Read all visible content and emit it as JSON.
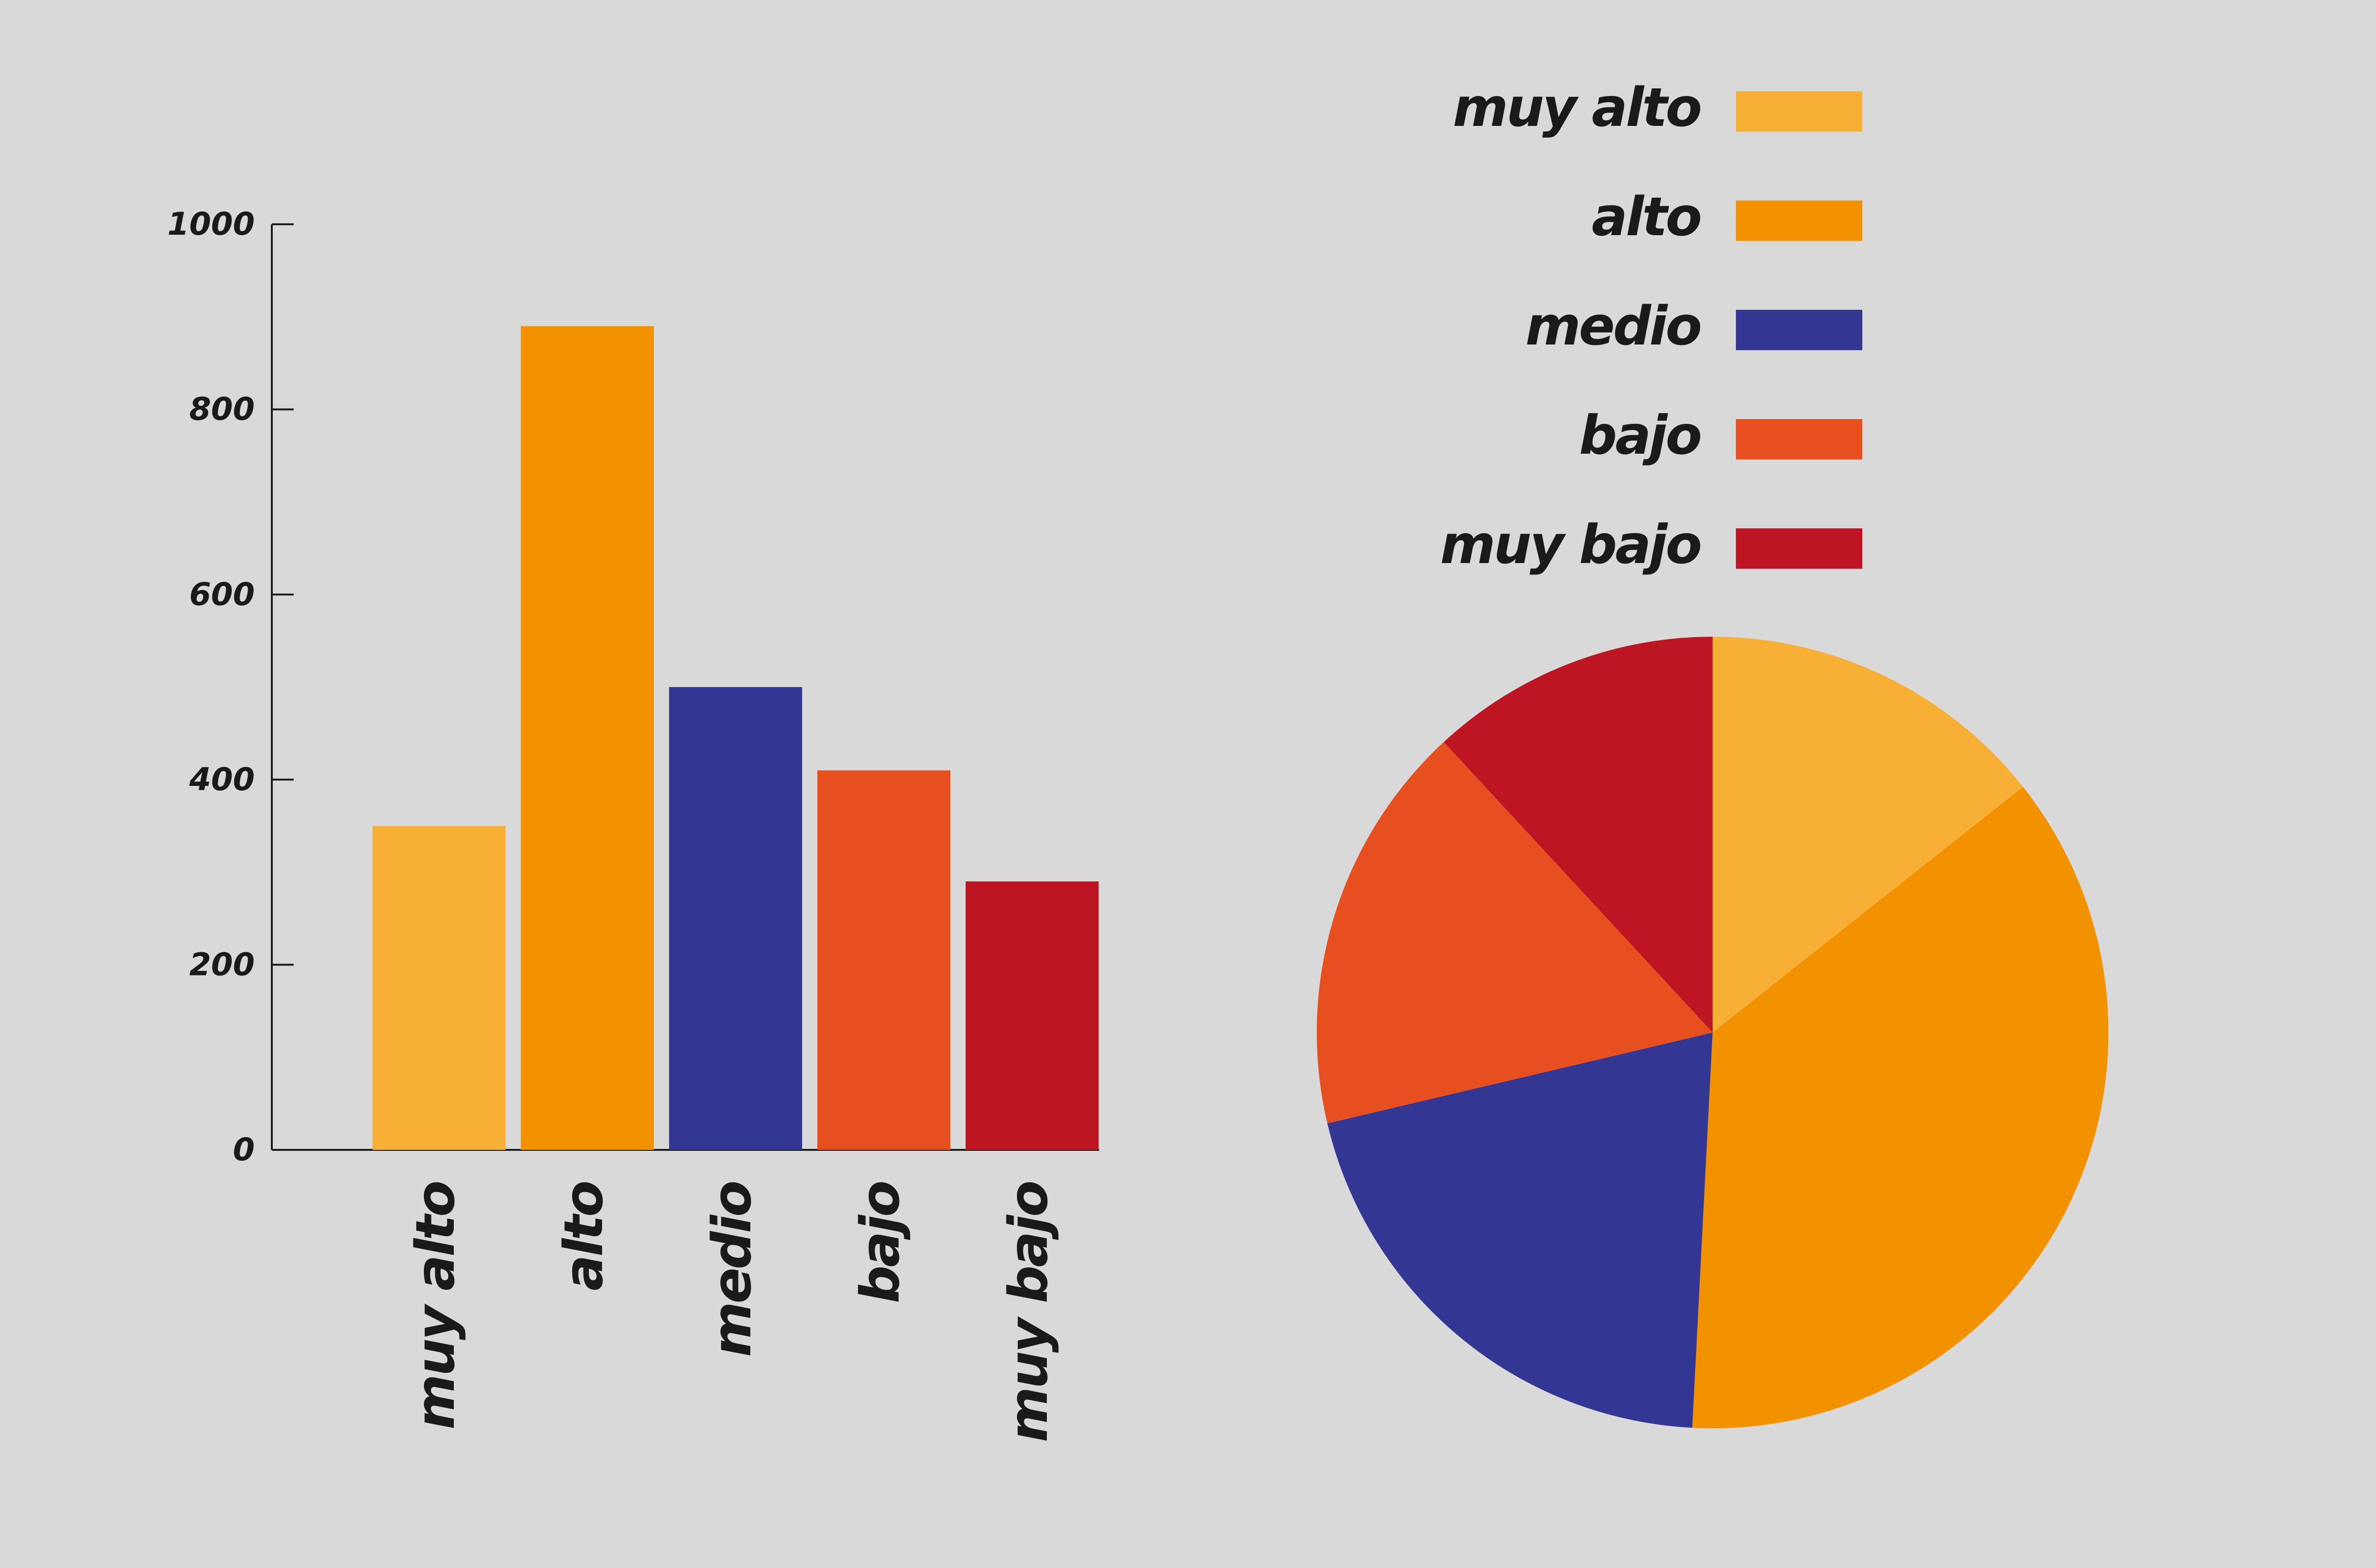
{
  "chart_data": [
    {
      "type": "bar",
      "categories": [
        "muy alto",
        "alto",
        "medio",
        "bajo",
        "muy bajo"
      ],
      "values": [
        350,
        890,
        500,
        410,
        290
      ],
      "colors": [
        "#f7b035",
        "#f29200",
        "#343694",
        "#e74f1e",
        "#bd1622"
      ],
      "ylim": [
        0,
        1000
      ],
      "yticks": [
        0,
        200,
        400,
        600,
        800,
        1000
      ]
    },
    {
      "type": "pie",
      "categories": [
        "muy alto",
        "alto",
        "medio",
        "bajo",
        "muy bajo"
      ],
      "values": [
        350,
        890,
        500,
        410,
        290
      ],
      "colors": [
        "#f7b035",
        "#f29200",
        "#343694",
        "#e74f1e",
        "#bd1622"
      ]
    }
  ]
}
